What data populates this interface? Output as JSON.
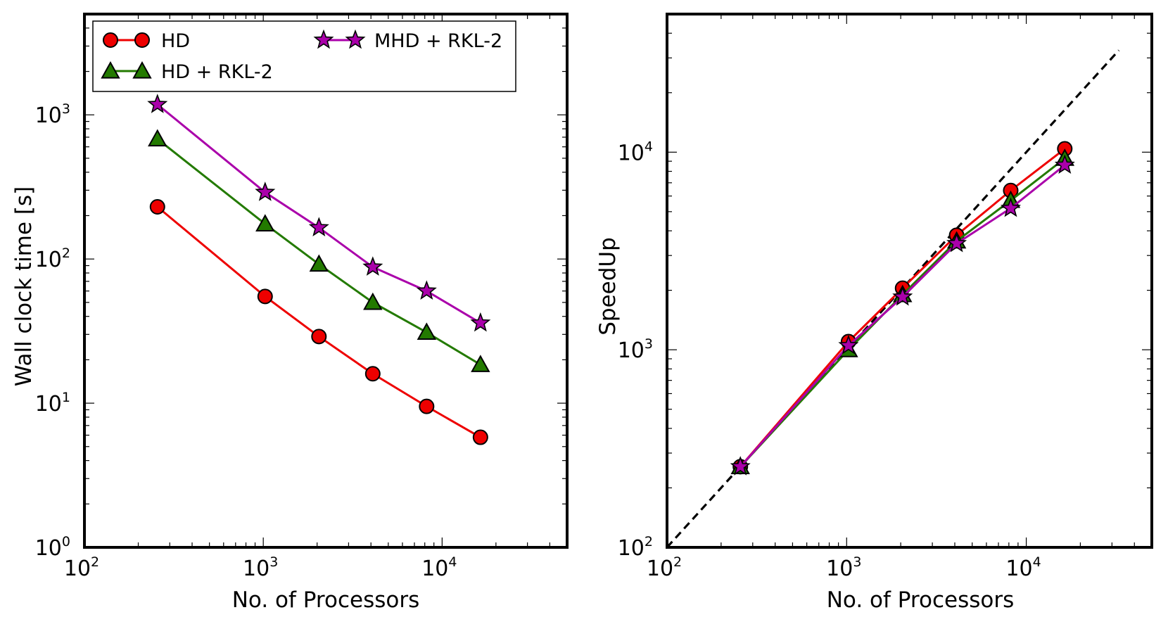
{
  "colors": {
    "hd": "#ee0000",
    "hd_rkl2": "#237a00",
    "mhd_rkl2": "#aa00aa",
    "ideal": "#000000"
  },
  "chart_data": [
    {
      "type": "line",
      "title": "",
      "xlabel": "No. of Processors",
      "ylabel": "Wall clock time [s]",
      "xscale": "log",
      "yscale": "log",
      "xlim": [
        100,
        50000
      ],
      "ylim": [
        1,
        5000
      ],
      "xticks": [
        {
          "base": "10",
          "exp": "2"
        },
        {
          "base": "10",
          "exp": "3"
        },
        {
          "base": "10",
          "exp": "4"
        }
      ],
      "yticks": [
        {
          "base": "10",
          "exp": "0"
        },
        {
          "base": "10",
          "exp": "1"
        },
        {
          "base": "10",
          "exp": "2"
        },
        {
          "base": "10",
          "exp": "3"
        }
      ],
      "legend_position": "top",
      "grid": false,
      "x": [
        256,
        1024,
        2048,
        4096,
        8192,
        16384
      ],
      "series": [
        {
          "name": "HD",
          "marker": "circle",
          "color_key": "hd",
          "values": [
            230,
            55,
            29,
            16,
            9.5,
            5.8
          ]
        },
        {
          "name": "HD + RKL-2",
          "marker": "triangle",
          "color_key": "hd_rkl2",
          "values": [
            680,
            175,
            92,
            50,
            31,
            18.5
          ]
        },
        {
          "name": "MHD + RKL-2",
          "marker": "star",
          "color_key": "mhd_rkl2",
          "values": [
            1180,
            290,
            165,
            88,
            60,
            36
          ]
        }
      ]
    },
    {
      "type": "line",
      "title": "",
      "xlabel": "No. of Processors",
      "ylabel": "SpeedUp",
      "xscale": "log",
      "yscale": "log",
      "xlim": [
        100,
        50000
      ],
      "ylim": [
        100,
        50000
      ],
      "xticks": [
        {
          "base": "10",
          "exp": "2"
        },
        {
          "base": "10",
          "exp": "3"
        },
        {
          "base": "10",
          "exp": "4"
        }
      ],
      "yticks": [
        {
          "base": "10",
          "exp": "2"
        },
        {
          "base": "10",
          "exp": "3"
        },
        {
          "base": "10",
          "exp": "4"
        }
      ],
      "grid": false,
      "ideal_line": {
        "style": "dashed",
        "x": [
          100,
          32768
        ],
        "y": [
          100,
          32768
        ]
      },
      "x": [
        256,
        1024,
        2048,
        4096,
        8192,
        16384
      ],
      "series": [
        {
          "marker": "circle",
          "color_key": "hd",
          "values": [
            256,
            1100,
            2050,
            3800,
            6400,
            10400
          ]
        },
        {
          "marker": "triangle",
          "color_key": "hd_rkl2",
          "values": [
            256,
            1000,
            1900,
            3550,
            5700,
            9300
          ]
        },
        {
          "marker": "star",
          "color_key": "mhd_rkl2",
          "values": [
            256,
            1050,
            1850,
            3450,
            5200,
            8600
          ]
        }
      ]
    }
  ]
}
